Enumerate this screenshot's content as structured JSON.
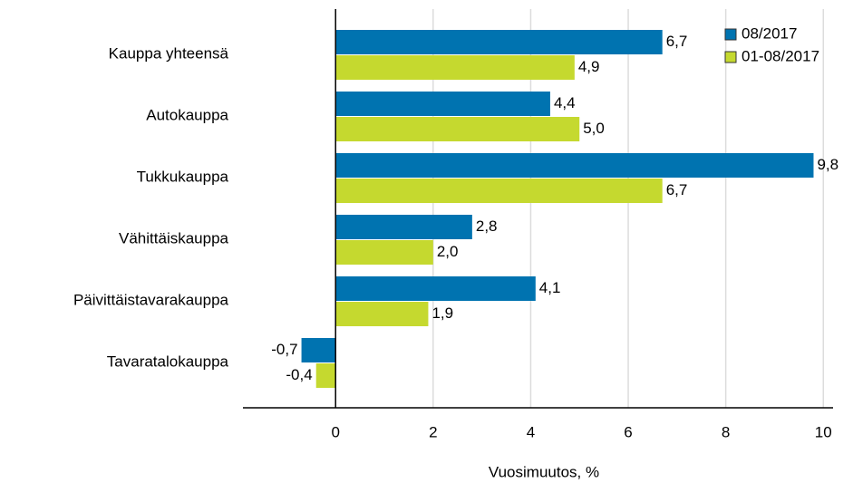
{
  "chart_data": {
    "type": "bar",
    "orientation": "horizontal",
    "categories": [
      "Kauppa yhteensä",
      "Autokauppa",
      "Tukkukauppa",
      "Vähittäiskauppa",
      "Päivittäistavarakauppa",
      "Tavaratalokauppa"
    ],
    "series": [
      {
        "name": "08/2017",
        "color": "#0073b0",
        "values": [
          6.7,
          4.4,
          9.8,
          2.8,
          4.1,
          -0.7
        ],
        "value_labels": [
          "6,7",
          "4,4",
          "9,8",
          "2,8",
          "4,1",
          "-0,7"
        ]
      },
      {
        "name": "01-08/2017",
        "color": "#c5d92f",
        "values": [
          4.9,
          5.0,
          6.7,
          2.0,
          1.9,
          -0.4
        ],
        "value_labels": [
          "4,9",
          "5,0",
          "6,7",
          "2,0",
          "1,9",
          "-0,4"
        ]
      }
    ],
    "xlabel": "Vuosimuutos, %",
    "xlim": [
      -1.9,
      10.2
    ],
    "xticks": [
      0,
      2,
      4,
      6,
      8,
      10
    ],
    "grid": true,
    "legend": "top right"
  }
}
